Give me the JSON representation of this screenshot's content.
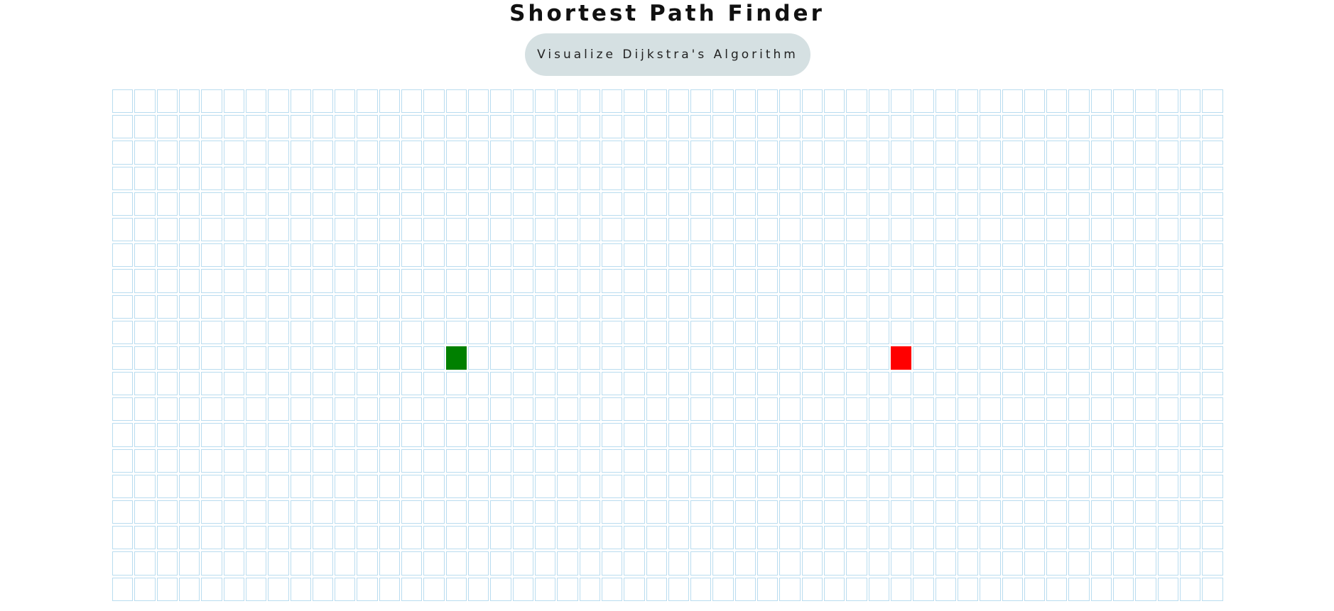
{
  "header": {
    "title": "Shortest Path Finder",
    "visualize_label": "Visualize Dijkstra's Algorithm"
  },
  "grid": {
    "rows": 20,
    "cols": 50,
    "start": {
      "row": 10,
      "col": 15
    },
    "end": {
      "row": 10,
      "col": 35
    }
  },
  "colors": {
    "start": "#008000",
    "end": "#ff0000",
    "cell_border": "#b9dcef",
    "button_bg": "#d5e0e2"
  }
}
